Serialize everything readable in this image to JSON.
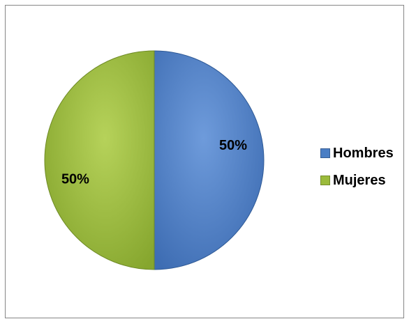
{
  "chart_data": {
    "type": "pie",
    "categories": [
      "Hombres",
      "Mujeres"
    ],
    "values": [
      50,
      50
    ],
    "data_labels": [
      "50%",
      "50%"
    ],
    "colors": [
      "#4A7EC4",
      "#9BBB3B"
    ],
    "legend_position": "right",
    "title": ""
  }
}
